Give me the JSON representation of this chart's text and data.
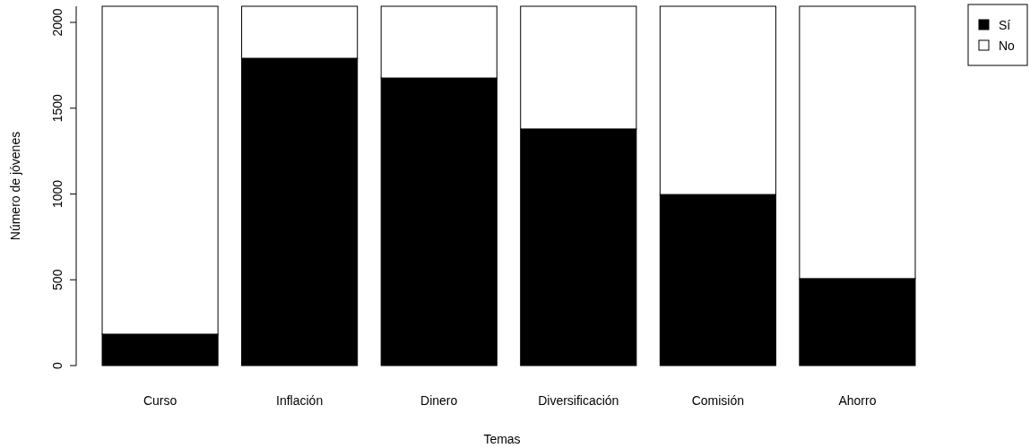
{
  "chart_data": {
    "type": "bar",
    "stacked": true,
    "xlabel": "Temas",
    "ylabel": "Número de jóvenes",
    "categories": [
      "Curso",
      "Inflación",
      "Dinero",
      "Diversificación",
      "Comisión",
      "Ahorro"
    ],
    "series": [
      {
        "name": "Sí",
        "color": "#000000",
        "values": [
          183,
          1791,
          1676,
          1379,
          997,
          507
        ]
      },
      {
        "name": "No",
        "color": "#ffffff",
        "values": [
          1911,
          303,
          418,
          715,
          1097,
          1587
        ]
      }
    ],
    "ylim": [
      0,
      2094
    ],
    "yticks": [
      0,
      500,
      1000,
      1500,
      2000
    ],
    "grid": false,
    "legend": "top right"
  }
}
